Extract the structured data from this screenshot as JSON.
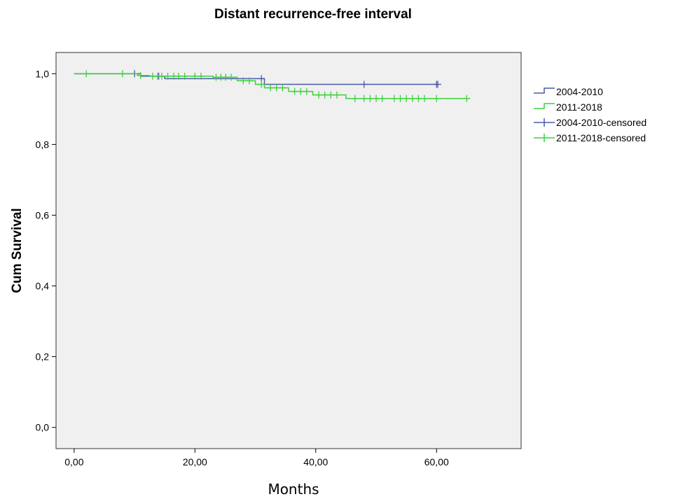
{
  "chart_data": {
    "type": "line",
    "subtype": "kaplan-meier",
    "title": "Distant recurrence-free interval",
    "xlabel": "Months",
    "ylabel": "Cum Survival",
    "xlim": [
      -3,
      74
    ],
    "ylim": [
      -0.06,
      1.06
    ],
    "x_ticks": [
      0,
      20,
      40,
      60
    ],
    "x_tick_labels": [
      "0,00",
      "20,00",
      "40,00",
      "60,00"
    ],
    "y_ticks": [
      0,
      0.2,
      0.4,
      0.6,
      0.8,
      1.0
    ],
    "y_tick_labels": [
      "0,0",
      "0,2",
      "0,4",
      "0,6",
      "0,8",
      "1,0"
    ],
    "grid": false,
    "plot_background": "#f0f0f0",
    "legend_position": "right",
    "series": [
      {
        "name": "2004-2010",
        "color": "#4a5aa8",
        "steps": [
          [
            0,
            1.0
          ],
          [
            11,
            0.993
          ],
          [
            15,
            0.986
          ],
          [
            31.5,
            0.97
          ],
          [
            60,
            0.97
          ]
        ],
        "censored_name": "2004-2010-censored",
        "censored": [
          [
            10,
            1.0
          ],
          [
            14,
            0.993
          ],
          [
            31,
            0.986
          ],
          [
            48,
            0.97
          ],
          [
            60,
            0.97
          ],
          [
            60.2,
            0.97
          ]
        ]
      },
      {
        "name": "2011-2018",
        "color": "#3bd13b",
        "steps": [
          [
            0,
            1.0
          ],
          [
            10.5,
            0.995
          ],
          [
            12.5,
            0.993
          ],
          [
            23,
            0.99
          ],
          [
            27,
            0.98
          ],
          [
            30,
            0.97
          ],
          [
            31.5,
            0.96
          ],
          [
            35.5,
            0.95
          ],
          [
            39.5,
            0.94
          ],
          [
            45,
            0.93
          ],
          [
            65,
            0.93
          ]
        ],
        "censored_name": "2011-2018-censored",
        "censored": [
          [
            2,
            1.0
          ],
          [
            8,
            1.0
          ],
          [
            11,
            0.995
          ],
          [
            13,
            0.993
          ],
          [
            13.8,
            0.993
          ],
          [
            14.5,
            0.993
          ],
          [
            15.5,
            0.993
          ],
          [
            16.5,
            0.993
          ],
          [
            17.3,
            0.993
          ],
          [
            18.3,
            0.993
          ],
          [
            20,
            0.993
          ],
          [
            21,
            0.993
          ],
          [
            23.5,
            0.99
          ],
          [
            24.3,
            0.99
          ],
          [
            25.1,
            0.99
          ],
          [
            26,
            0.99
          ],
          [
            28,
            0.98
          ],
          [
            29,
            0.98
          ],
          [
            31,
            0.97
          ],
          [
            32.5,
            0.96
          ],
          [
            33.5,
            0.96
          ],
          [
            34.5,
            0.96
          ],
          [
            36.5,
            0.95
          ],
          [
            37.5,
            0.95
          ],
          [
            38.5,
            0.95
          ],
          [
            40.5,
            0.94
          ],
          [
            41.5,
            0.94
          ],
          [
            42.5,
            0.94
          ],
          [
            43.5,
            0.94
          ],
          [
            46.5,
            0.93
          ],
          [
            48,
            0.93
          ],
          [
            49,
            0.93
          ],
          [
            50,
            0.93
          ],
          [
            51,
            0.93
          ],
          [
            53,
            0.93
          ],
          [
            54,
            0.93
          ],
          [
            55,
            0.93
          ],
          [
            56,
            0.93
          ],
          [
            57,
            0.93
          ],
          [
            58,
            0.93
          ],
          [
            60,
            0.93
          ],
          [
            65,
            0.93
          ]
        ]
      }
    ]
  }
}
